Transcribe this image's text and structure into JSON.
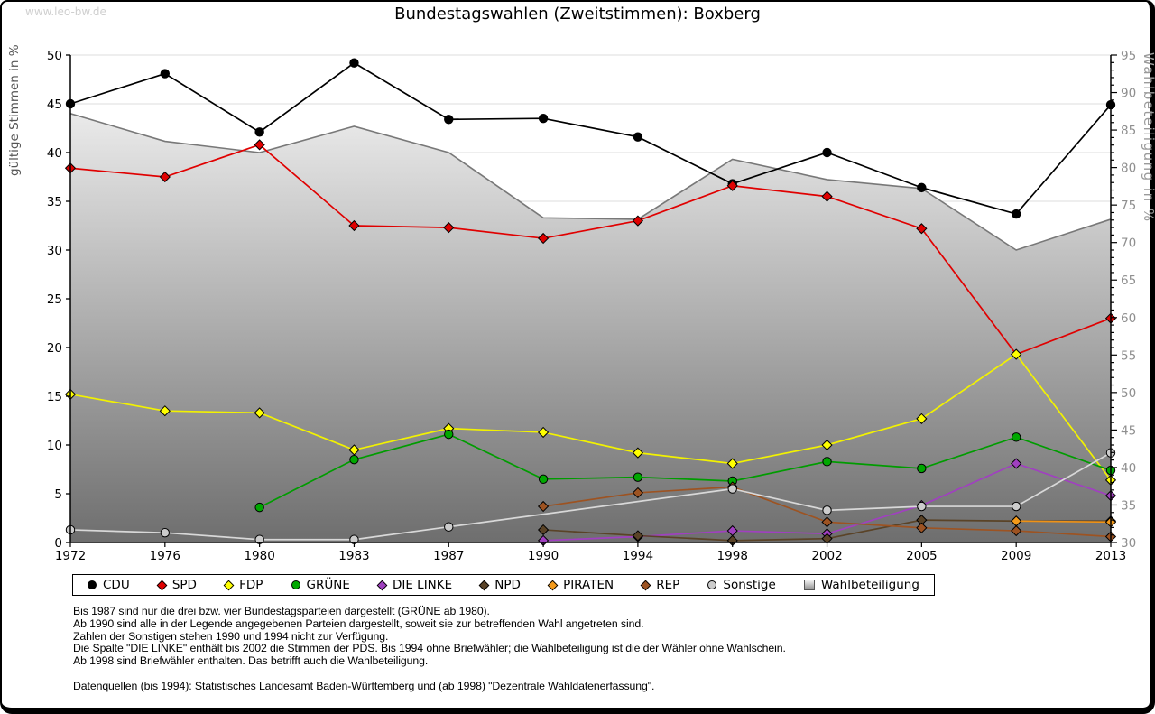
{
  "page": {
    "watermark": "www.leo-bw.de",
    "title": "Bundestagswahlen (Zweitstimmen): Boxberg"
  },
  "chart_data": {
    "type": "line",
    "title": "Bundestagswahlen (Zweitstimmen): Boxberg",
    "categories": [
      "1972",
      "1976",
      "1980",
      "1983",
      "1987",
      "1990",
      "1994",
      "1998",
      "2002",
      "2005",
      "2009",
      "2013"
    ],
    "y_left": {
      "label": "gültige Stimmen in %",
      "min": 0,
      "max": 50,
      "step": 5,
      "title_color": "#555555",
      "tick_color": "#000000"
    },
    "y_right": {
      "label": "Wahlbeteiligung in %",
      "min": 30,
      "max": 95,
      "step": 5,
      "minor_step": 1,
      "title_color": "#9a9a9a",
      "tick_color": "#8f8f8f"
    },
    "grid": true,
    "legend_position": "bottom",
    "series": [
      {
        "name": "CDU",
        "color": "#000000",
        "fill": "#000000",
        "shape": "circle",
        "values": [
          45.0,
          48.1,
          42.1,
          49.2,
          43.4,
          43.5,
          41.6,
          36.8,
          40.0,
          36.4,
          33.7,
          44.9
        ]
      },
      {
        "name": "SPD",
        "color": "#e00000",
        "fill": "#e00000",
        "shape": "diamond",
        "values": [
          38.4,
          37.5,
          40.8,
          32.5,
          32.3,
          31.2,
          33.0,
          36.6,
          35.5,
          32.2,
          19.3,
          23.0
        ]
      },
      {
        "name": "FDP",
        "color": "#f2f200",
        "fill": "#ffff00",
        "shape": "diamond",
        "values": [
          15.2,
          13.5,
          13.3,
          9.5,
          11.7,
          11.3,
          9.2,
          8.1,
          10.0,
          12.7,
          19.3,
          6.4
        ]
      },
      {
        "name": "GRÜNE",
        "color": "#009c00",
        "fill": "#00a800",
        "shape": "circle",
        "values": [
          null,
          null,
          3.6,
          8.5,
          11.1,
          6.5,
          6.7,
          6.3,
          8.3,
          7.6,
          10.8,
          7.4
        ]
      },
      {
        "name": "DIE LINKE",
        "color": "#a040c0",
        "fill": "#a040c0",
        "shape": "diamond",
        "values": [
          null,
          null,
          null,
          null,
          null,
          0.2,
          0.6,
          1.2,
          0.9,
          3.8,
          8.1,
          4.8
        ]
      },
      {
        "name": "NPD",
        "color": "#5a4327",
        "fill": "#5a4327",
        "shape": "diamond",
        "values": [
          null,
          null,
          null,
          null,
          null,
          1.3,
          0.7,
          0.2,
          0.4,
          2.3,
          2.2,
          2.2
        ]
      },
      {
        "name": "PIRATEN",
        "color": "#ef9216",
        "fill": "#f49a1a",
        "shape": "diamond",
        "values": [
          null,
          null,
          null,
          null,
          null,
          null,
          null,
          null,
          null,
          null,
          2.2,
          2.1
        ]
      },
      {
        "name": "REP",
        "color": "#9d5322",
        "fill": "#9d5322",
        "shape": "diamond",
        "values": [
          null,
          null,
          null,
          null,
          null,
          3.7,
          5.1,
          5.7,
          2.1,
          1.5,
          1.2,
          0.6
        ]
      },
      {
        "name": "Sonstige",
        "color": "#d8d8d8",
        "fill": "#cccccc",
        "shape": "circle",
        "values": [
          1.3,
          1.0,
          0.3,
          0.3,
          1.6,
          null,
          null,
          5.5,
          3.3,
          3.7,
          3.7,
          9.2
        ]
      }
    ],
    "turnout": {
      "name": "Wahlbeteiligung",
      "axis": "right",
      "shape": "square",
      "area_stroke": "#787878",
      "area_top_color": "#fbfbfb",
      "area_bottom_color": "#6e6e6e",
      "values": [
        87.2,
        83.5,
        82.0,
        85.5,
        82.0,
        73.3,
        73.1,
        81.1,
        78.4,
        77.2,
        69.0,
        73.1
      ]
    }
  },
  "footnotes": {
    "lines": [
      "Bis 1987 sind nur die drei bzw. vier Bundestagsparteien dargestellt (GRÜNE ab 1980).",
      "Ab 1990 sind alle in der Legende angegebenen Parteien dargestellt, soweit sie zur betreffenden Wahl angetreten sind.",
      "Zahlen der Sonstigen stehen 1990 und 1994 nicht zur Verfügung.",
      "Die Spalte \"DIE LINKE\" enthält bis 2002 die Stimmen der PDS. Bis 1994 ohne Briefwähler; die Wahlbeteiligung ist die der Wähler ohne Wahlschein.",
      "Ab 1998 sind Briefwähler enthalten. Das betrifft auch die Wahlbeteiligung.",
      "",
      "Datenquellen (bis 1994): Statistisches Landesamt Baden-Württemberg und (ab 1998) \"Dezentrale Wahldatenerfassung\"."
    ]
  }
}
